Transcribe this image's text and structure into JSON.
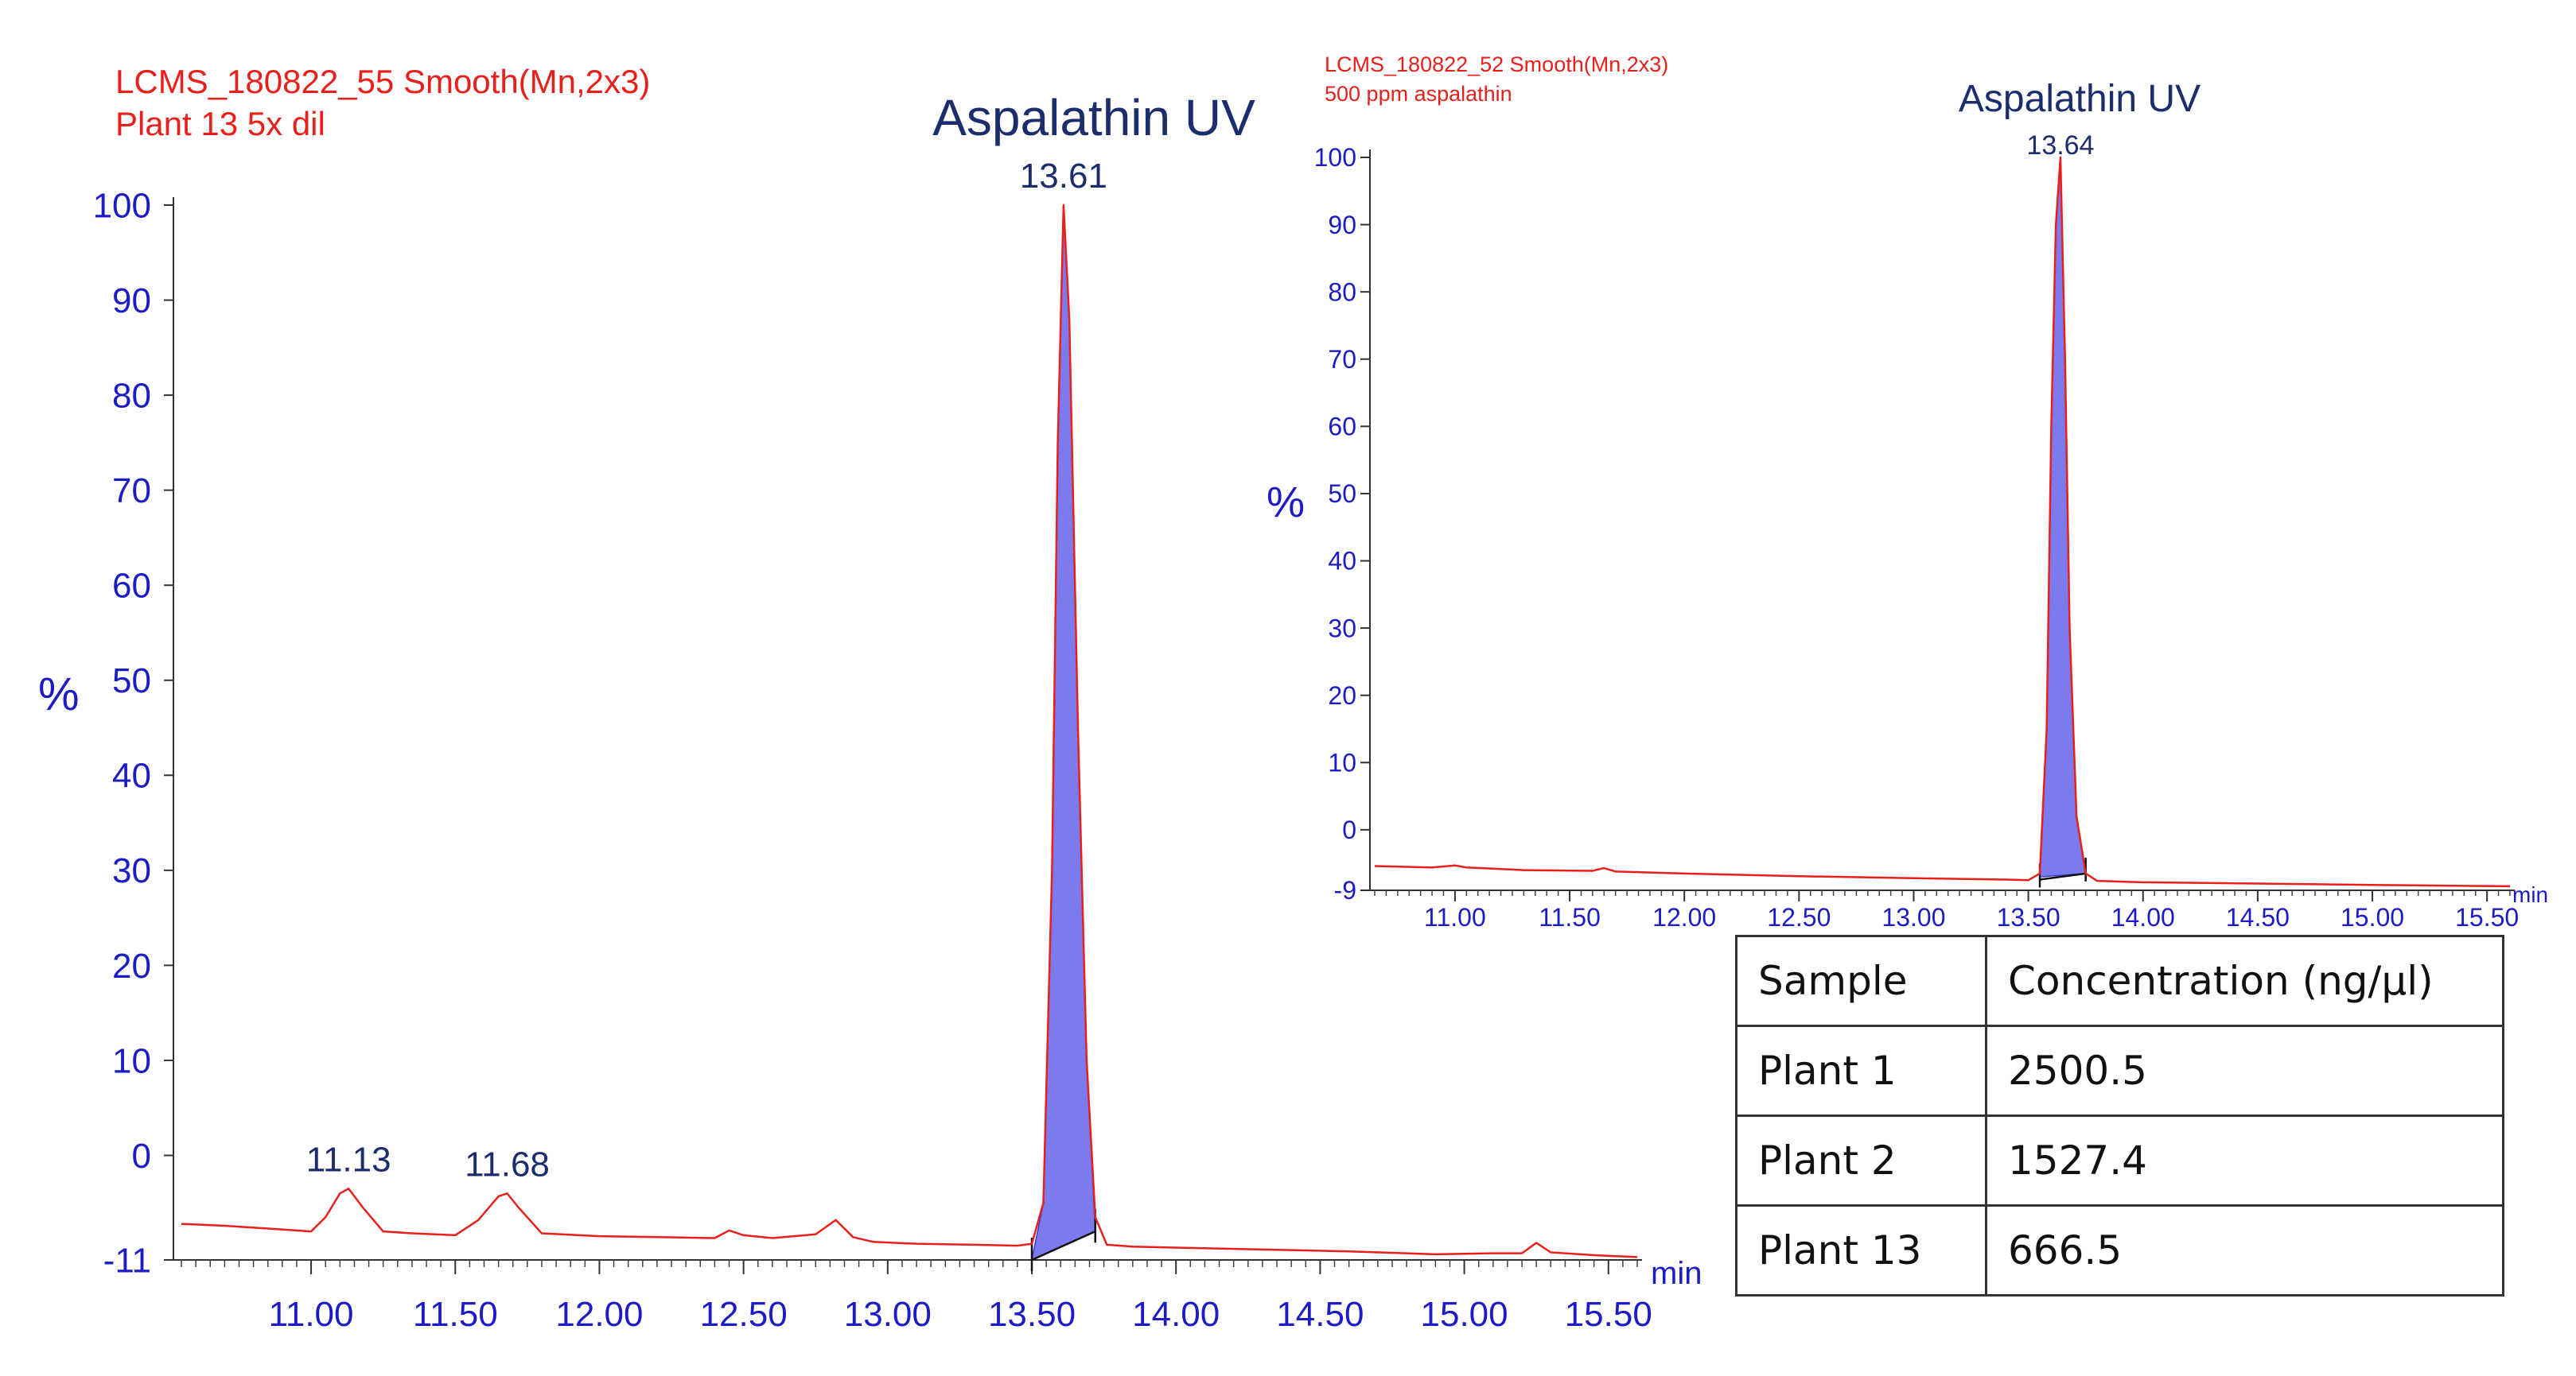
{
  "chart_data": [
    {
      "type": "line",
      "title": "Aspalathin UV",
      "subtitle_lines": [
        "LCMS_180822_55 Smooth(Mn,2x3)",
        "Plant 13 5x dil"
      ],
      "ylabel": "%",
      "xlabel": "min",
      "xlim": [
        10.55,
        15.6
      ],
      "ylim": [
        -11,
        100
      ],
      "x_ticks": [
        11.0,
        11.5,
        12.0,
        12.5,
        13.0,
        13.5,
        14.0,
        14.5,
        15.0,
        15.5
      ],
      "x_tick_labels": [
        "11.00",
        "11.50",
        "12.00",
        "12.50",
        "13.00",
        "13.50",
        "14.00",
        "14.50",
        "15.00",
        "15.50"
      ],
      "y_ticks": [
        -11,
        0,
        10,
        20,
        30,
        40,
        50,
        60,
        70,
        80,
        90,
        100
      ],
      "y_tick_labels": [
        "-11",
        "0",
        "10",
        "20",
        "30",
        "40",
        "50",
        "60",
        "70",
        "80",
        "90",
        "100"
      ],
      "peak_labels": [
        {
          "x": 13.61,
          "label": "13.61"
        },
        {
          "x": 11.13,
          "label": "11.13"
        },
        {
          "x": 11.68,
          "label": "11.68"
        }
      ],
      "series": [
        {
          "name": "UV trace",
          "color": "#e8201c",
          "x": [
            10.55,
            10.7,
            10.85,
            11.0,
            11.05,
            11.1,
            11.13,
            11.18,
            11.25,
            11.35,
            11.5,
            11.58,
            11.65,
            11.68,
            11.72,
            11.8,
            12.0,
            12.2,
            12.4,
            12.45,
            12.5,
            12.6,
            12.75,
            12.82,
            12.88,
            12.95,
            13.1,
            13.3,
            13.45,
            13.5,
            13.54,
            13.57,
            13.59,
            13.61,
            13.63,
            13.66,
            13.69,
            13.72,
            13.76,
            13.85,
            14.0,
            14.3,
            14.6,
            14.9,
            15.1,
            15.2,
            15.25,
            15.3,
            15.45,
            15.6
          ],
          "y": [
            -7.2,
            -7.4,
            -7.7,
            -8.0,
            -6.5,
            -4.0,
            -3.5,
            -5.5,
            -8.0,
            -8.2,
            -8.4,
            -6.8,
            -4.3,
            -4.0,
            -5.5,
            -8.2,
            -8.5,
            -8.6,
            -8.7,
            -7.9,
            -8.4,
            -8.7,
            -8.3,
            -6.8,
            -8.6,
            -9.1,
            -9.3,
            -9.4,
            -9.5,
            -9.3,
            -5.0,
            30.0,
            75.0,
            100.0,
            88.0,
            45.0,
            10.0,
            -6.5,
            -9.4,
            -9.6,
            -9.7,
            -9.9,
            -10.1,
            -10.4,
            -10.3,
            -10.3,
            -9.2,
            -10.2,
            -10.5,
            -10.7
          ]
        },
        {
          "name": "Aspalathin integrated peak",
          "color": "#7b7bef",
          "x": [
            13.5,
            13.54,
            13.57,
            13.59,
            13.61,
            13.63,
            13.66,
            13.69,
            13.72
          ],
          "y": [
            -11.0,
            -5.0,
            30.0,
            75.0,
            100.0,
            88.0,
            45.0,
            10.0,
            -8.0
          ]
        }
      ]
    },
    {
      "type": "line",
      "title": "Aspalathin  UV",
      "subtitle_lines": [
        "LCMS_180822_52 Smooth(Mn,2x3)",
        "500 ppm aspalathin"
      ],
      "ylabel": "%",
      "xlabel": "min",
      "xlim": [
        10.65,
        15.6
      ],
      "ylim": [
        -9,
        100
      ],
      "x_ticks": [
        11.0,
        11.5,
        12.0,
        12.5,
        13.0,
        13.5,
        14.0,
        14.5,
        15.0,
        15.5
      ],
      "x_tick_labels": [
        "11.00",
        "11.50",
        "12.00",
        "12.50",
        "13.00",
        "13.50",
        "14.00",
        "14.50",
        "15.00",
        "15.50"
      ],
      "y_ticks": [
        -9,
        0,
        10,
        20,
        30,
        40,
        50,
        60,
        70,
        80,
        90,
        100
      ],
      "y_tick_labels": [
        "-9",
        "0",
        "10",
        "20",
        "30",
        "40",
        "50",
        "60",
        "70",
        "80",
        "90",
        "100"
      ],
      "peak_labels": [
        {
          "x": 13.64,
          "label": "13.64"
        }
      ],
      "series": [
        {
          "name": "UV trace",
          "color": "#e8201c",
          "x": [
            10.65,
            10.9,
            11.0,
            11.05,
            11.3,
            11.6,
            11.65,
            11.7,
            12.0,
            12.5,
            13.0,
            13.4,
            13.5,
            13.55,
            13.58,
            13.6,
            13.62,
            13.64,
            13.66,
            13.68,
            13.71,
            13.75,
            13.8,
            14.0,
            14.5,
            15.0,
            15.3,
            15.6
          ],
          "y": [
            -5.4,
            -5.6,
            -5.3,
            -5.6,
            -6.0,
            -6.1,
            -5.7,
            -6.2,
            -6.5,
            -6.9,
            -7.2,
            -7.4,
            -7.5,
            -6.5,
            15.0,
            60.0,
            90.0,
            100.0,
            70.0,
            30.0,
            2.0,
            -6.5,
            -7.6,
            -7.8,
            -8.0,
            -8.2,
            -8.3,
            -8.4
          ]
        },
        {
          "name": "Aspalathin integrated peak",
          "color": "#7b7bef",
          "x": [
            13.55,
            13.58,
            13.6,
            13.62,
            13.64,
            13.66,
            13.68,
            13.71,
            13.75
          ],
          "y": [
            -7.0,
            15.0,
            60.0,
            90.0,
            100.0,
            70.0,
            30.0,
            2.0,
            -6.5
          ]
        }
      ]
    }
  ],
  "table": {
    "headers": [
      "Sample",
      "Concentration (ng/µl)"
    ],
    "rows": [
      [
        "Plant 1",
        "2500.5"
      ],
      [
        "Plant 2",
        "1527.4"
      ],
      [
        "Plant 13",
        "666.5"
      ]
    ]
  }
}
